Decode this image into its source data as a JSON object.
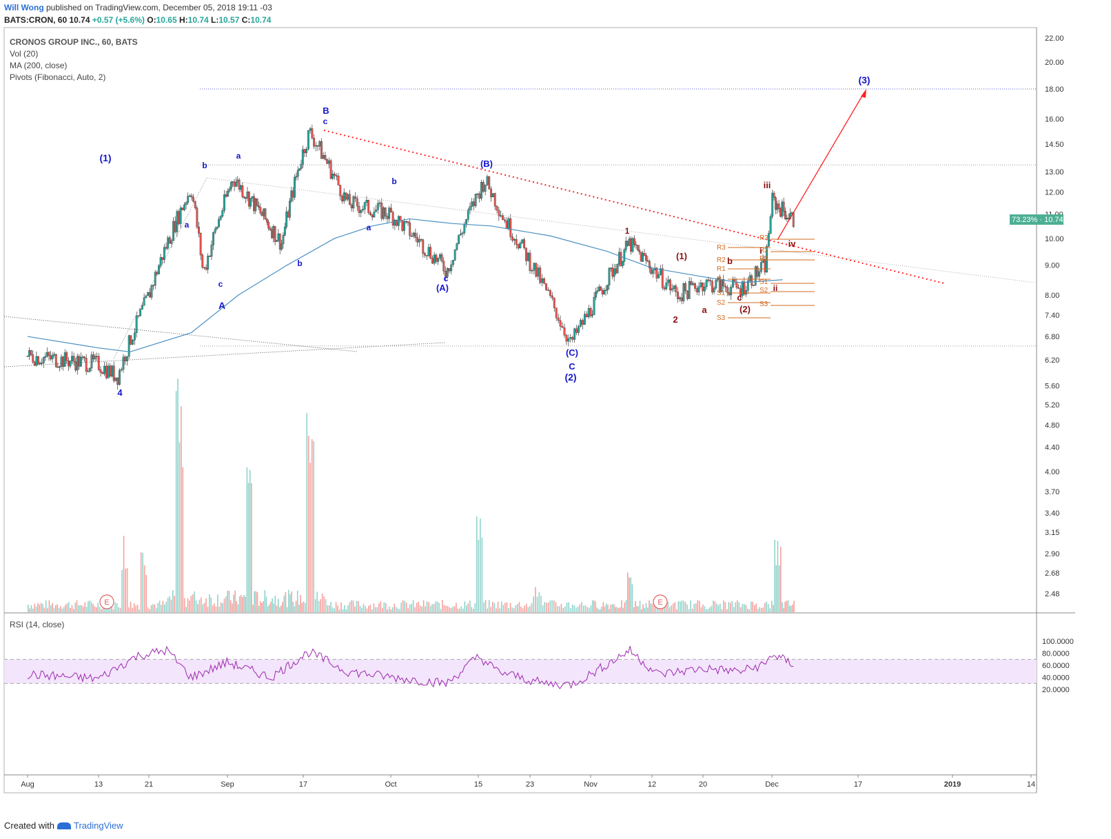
{
  "header": {
    "author": "Will Wong",
    "published": "published on TradingView.com, December 05, 2018 19:11 -03",
    "ticker": "BATS:CRON, 60",
    "last": "10.74",
    "change": "+0.57 (+5.6%)",
    "ohlc_o_label": "O:",
    "ohlc_o": "10.65",
    "ohlc_h_label": "H:",
    "ohlc_h": "10.74",
    "ohlc_l_label": "L:",
    "ohlc_l": "10.57",
    "ohlc_c_label": "C:",
    "ohlc_c": "10.74"
  },
  "legend": {
    "title": "CRONOS GROUP INC., 60, BATS",
    "vol": "Vol (20)",
    "ma": "MA (200, close)",
    "pivots": "Pivots (Fibonacci, Auto, 2)"
  },
  "price_tag": {
    "percent": "73.23%",
    "value": "10.74"
  },
  "footer": {
    "created": "Created with",
    "brand": "TradingView"
  },
  "colors": {
    "up": "#26a69a",
    "down": "#ef5350",
    "ma": "#4a8fc0",
    "rsi": "#9c27b0",
    "wave_blue": "#1515cc",
    "wave_red": "#8b1010",
    "pivot": "#d2691e",
    "trend": "#ff2020"
  },
  "chart_data": {
    "type": "line",
    "title": "CRONOS GROUP INC., 60, BATS",
    "x_ticks": [
      "Aug",
      "13",
      "21",
      "Sep",
      "17",
      "Oct",
      "15",
      "23",
      "Nov",
      "12",
      "20",
      "Dec",
      "17",
      "2019",
      "14"
    ],
    "y_ticks": [
      "22.00",
      "20.00",
      "18.00",
      "16.00",
      "14.50",
      "13.00",
      "12.00",
      "11.00",
      "10.00",
      "9.00",
      "8.00",
      "7.40",
      "6.80",
      "6.20",
      "5.60",
      "5.20",
      "4.80",
      "4.40",
      "4.00",
      "3.70",
      "3.40",
      "3.15",
      "2.90",
      "2.68",
      "2.48"
    ],
    "log_scale": true,
    "series": [
      {
        "name": "Price",
        "x": [
          "Aug 1",
          "Aug 13",
          "Aug 16",
          "Aug 21",
          "Aug 28",
          "Aug 30",
          "Sep 4",
          "Sep 13",
          "Sep 18",
          "Sep 24",
          "Oct 1",
          "Oct 10",
          "Oct 16",
          "Oct 19",
          "Oct 29",
          "Nov 8",
          "Nov 16",
          "Nov 20",
          "Nov 26",
          "Nov 30",
          "Dec 1",
          "Dec 5"
        ],
        "values": [
          6.3,
          6.1,
          5.8,
          8.0,
          12.2,
          8.7,
          12.7,
          9.8,
          15.2,
          11.5,
          11.0,
          8.8,
          12.6,
          10.8,
          6.6,
          9.8,
          8.0,
          8.4,
          8.2,
          9.0,
          11.6,
          10.74
        ]
      },
      {
        "name": "MA (200, close)",
        "x": [
          "Aug 1",
          "Aug 13",
          "Aug 18",
          "Aug 28",
          "Sep 5",
          "Sep 14",
          "Sep 22",
          "Sep 28",
          "Oct 4",
          "Oct 11",
          "Oct 17",
          "Oct 26",
          "Nov 4",
          "Nov 12",
          "Nov 20",
          "Nov 26",
          "Dec 3"
        ],
        "values": [
          6.8,
          6.5,
          6.4,
          6.9,
          8.0,
          9.0,
          10.0,
          10.5,
          10.8,
          10.6,
          10.5,
          10.1,
          9.5,
          8.9,
          8.6,
          8.4,
          8.5
        ]
      },
      {
        "name": "RSI (14, close)",
        "x": [
          "Aug 1",
          "Aug 13",
          "Aug 19",
          "Aug 24",
          "Aug 28",
          "Sep 3",
          "Sep 11",
          "Sep 18",
          "Sep 24",
          "Oct 3",
          "Oct 10",
          "Oct 15",
          "Oct 18",
          "Oct 25",
          "Oct 29",
          "Nov 8",
          "Nov 13",
          "Nov 20",
          "Nov 26",
          "Nov 30",
          "Dec 1",
          "Dec 5"
        ],
        "values": [
          45,
          38,
          75,
          85,
          40,
          65,
          40,
          82,
          50,
          38,
          30,
          75,
          50,
          30,
          28,
          85,
          45,
          55,
          50,
          62,
          78,
          62
        ]
      }
    ],
    "rsi_axis": [
      "100.0000",
      "80.0000",
      "60.0000",
      "40.0000",
      "20.0000"
    ],
    "rsi_band": [
      30,
      70
    ],
    "pivot_labels": [
      "R3",
      "R2",
      "R1",
      "P",
      "S1",
      "S2",
      "S3",
      "R3",
      "R2",
      "R1",
      "S1",
      "S2",
      "S3"
    ],
    "wave_labels_blue": [
      "(1)",
      "(2)",
      "(3)",
      "(A)",
      "(B)",
      "(C)",
      "A",
      "B",
      "C",
      "a",
      "b",
      "c",
      "4"
    ],
    "wave_labels_red": [
      "1",
      "2",
      "(1)",
      "(2)",
      "a",
      "b",
      "c",
      "i",
      "ii",
      "iii",
      "iv"
    ],
    "earnings_markers": [
      "E",
      "E"
    ]
  }
}
